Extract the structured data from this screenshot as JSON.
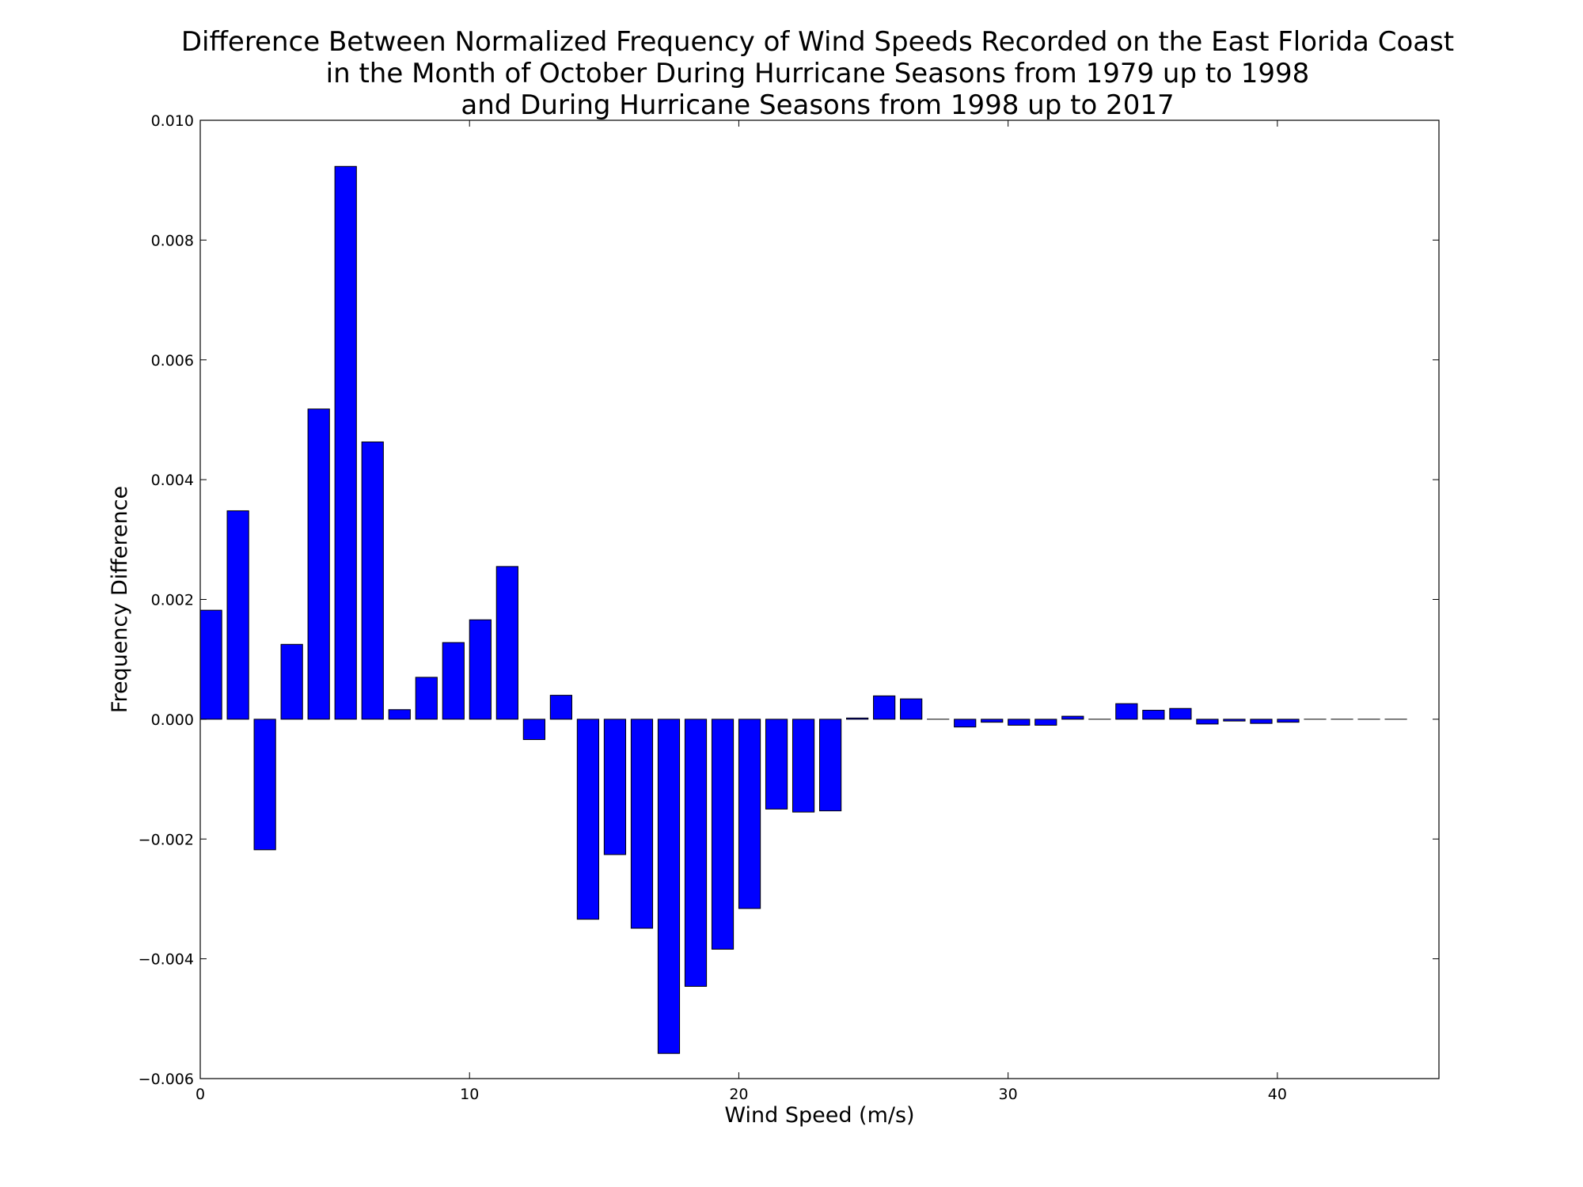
{
  "chart_data": {
    "type": "bar",
    "title": [
      "Difference Between Normalized Frequency of Wind Speeds Recorded on the East Florida Coast",
      "in the Month of October During Hurricane Seasons from 1979 up to 1998",
      "and During Hurricane Seasons from 1998 up to 2017"
    ],
    "xlabel": "Wind Speed (m/s)",
    "ylabel": "Frequency Difference",
    "xlim": [
      0,
      46
    ],
    "ylim": [
      -0.006,
      0.01
    ],
    "xticks": [
      0,
      10,
      20,
      30,
      40
    ],
    "xtick_labels": [
      "0",
      "10",
      "20",
      "30",
      "40"
    ],
    "yticks": [
      -0.006,
      -0.004,
      -0.002,
      0.0,
      0.002,
      0.004,
      0.006,
      0.008,
      0.01
    ],
    "ytick_labels": [
      "−0.006",
      "−0.004",
      "−0.002",
      "0.000",
      "0.002",
      "0.004",
      "0.006",
      "0.008",
      "0.010"
    ],
    "bar_width": 0.8,
    "grid": false,
    "bar_color": "#0000ff",
    "x": [
      0,
      1,
      2,
      3,
      4,
      5,
      6,
      7,
      8,
      9,
      10,
      11,
      12,
      13,
      14,
      15,
      16,
      17,
      18,
      19,
      20,
      21,
      22,
      23,
      24,
      25,
      26,
      27,
      28,
      29,
      30,
      31,
      32,
      33,
      34,
      35,
      36,
      37,
      38,
      39,
      40,
      41,
      42,
      43,
      44
    ],
    "values": [
      0.00182,
      0.00348,
      -0.00218,
      0.00125,
      0.00518,
      0.00923,
      0.00463,
      0.00016,
      0.0007,
      0.00128,
      0.00166,
      0.00255,
      -0.00034,
      0.0004,
      -0.00334,
      -0.00226,
      -0.00349,
      -0.00558,
      -0.00446,
      -0.00384,
      -0.00316,
      -0.0015,
      -0.00155,
      -0.00153,
      2e-05,
      0.00039,
      0.00034,
      0.0,
      -0.00013,
      -5e-05,
      -0.0001,
      -0.0001,
      5e-05,
      0.0,
      0.00026,
      0.00015,
      0.00018,
      -8e-05,
      -3e-05,
      -7e-05,
      -5e-05,
      0.0,
      0.0,
      0.0,
      0.0
    ]
  }
}
